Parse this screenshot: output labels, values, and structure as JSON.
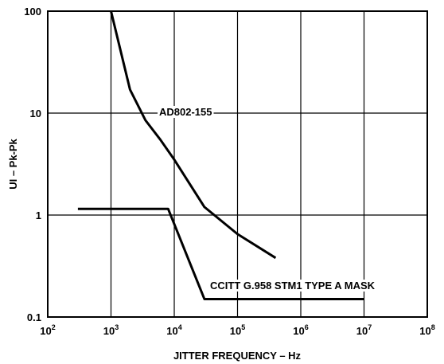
{
  "chart_data": {
    "type": "line",
    "title": "",
    "xlabel": "JITTER FREQUENCY – Hz",
    "ylabel": "UI – Pk-Pk",
    "x_scale": "log",
    "y_scale": "log",
    "xlim": [
      100,
      100000000
    ],
    "ylim": [
      0.1,
      100
    ],
    "grid": true,
    "x_ticks": [
      {
        "base": "10",
        "exp": "2",
        "value": 100
      },
      {
        "base": "10",
        "exp": "3",
        "value": 1000
      },
      {
        "base": "10",
        "exp": "4",
        "value": 10000
      },
      {
        "base": "10",
        "exp": "5",
        "value": 100000
      },
      {
        "base": "10",
        "exp": "6",
        "value": 1000000
      },
      {
        "base": "10",
        "exp": "7",
        "value": 10000000
      },
      {
        "base": "10",
        "exp": "8",
        "value": 100000000
      }
    ],
    "y_ticks": [
      {
        "label": "100",
        "value": 100
      },
      {
        "label": "10",
        "value": 10
      },
      {
        "label": "1",
        "value": 1
      },
      {
        "label": "0.1",
        "value": 0.1
      }
    ],
    "series": [
      {
        "name": "AD802-155",
        "x": [
          1000,
          2000,
          3500,
          6000,
          10000,
          30000,
          100000,
          400000
        ],
        "y": [
          100,
          17,
          8.5,
          5.5,
          3.5,
          1.2,
          0.65,
          0.38
        ]
      },
      {
        "name": "CCITT G.958 STM1 TYPE A MASK",
        "x": [
          300,
          8000,
          30000,
          10000000
        ],
        "y": [
          1.15,
          1.15,
          0.15,
          0.15
        ]
      }
    ]
  }
}
